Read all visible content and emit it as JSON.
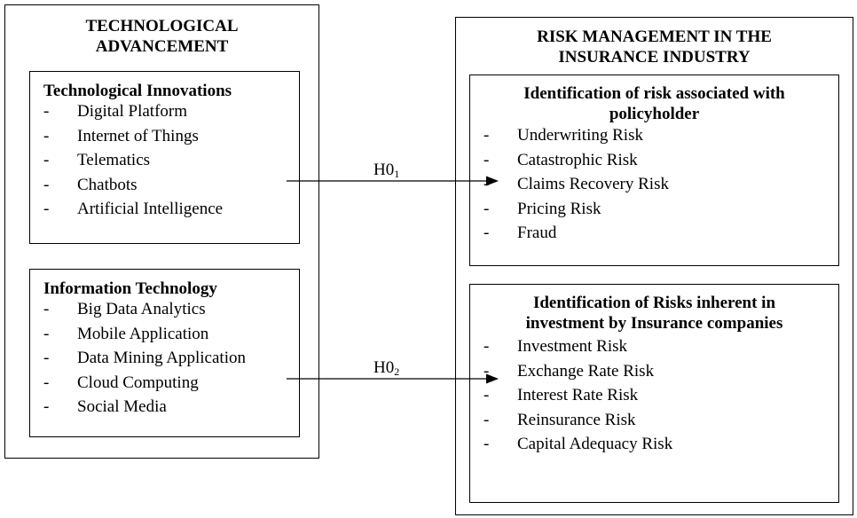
{
  "tech_advancement": {
    "title_line1": "TECHNOLOGICAL",
    "title_line2": "ADVANCEMENT",
    "innovations": {
      "title": "Technological Innovations",
      "items": [
        "Digital Platform",
        "Internet of Things",
        "Telematics",
        "Chatbots",
        "Artificial Intelligence"
      ]
    },
    "it": {
      "title": "Information Technology",
      "items": [
        "Big Data Analytics",
        "Mobile Application",
        "Data Mining Application",
        "Cloud Computing",
        "Social Media"
      ]
    }
  },
  "risk_management": {
    "title_line1": "RISK MANAGEMENT IN THE",
    "title_line2": "INSURANCE INDUSTRY",
    "policyholder": {
      "title_line1": "Identification of risk associated with",
      "title_line2": "policyholder",
      "items": [
        "Underwriting Risk",
        "Catastrophic Risk",
        "Claims Recovery Risk",
        "Pricing Risk",
        "Fraud"
      ]
    },
    "investment": {
      "title_line1": "Identification of Risks inherent in",
      "title_line2": "investment by Insurance companies",
      "items": [
        "Investment Risk",
        "Exchange Rate Risk",
        "Interest Rate Risk",
        "Reinsurance Risk",
        "Capital Adequacy Risk"
      ]
    }
  },
  "hypotheses": {
    "h1": {
      "base": "H0",
      "sub": "1"
    },
    "h2": {
      "base": "H0",
      "sub": "2"
    }
  },
  "bullet": "-"
}
